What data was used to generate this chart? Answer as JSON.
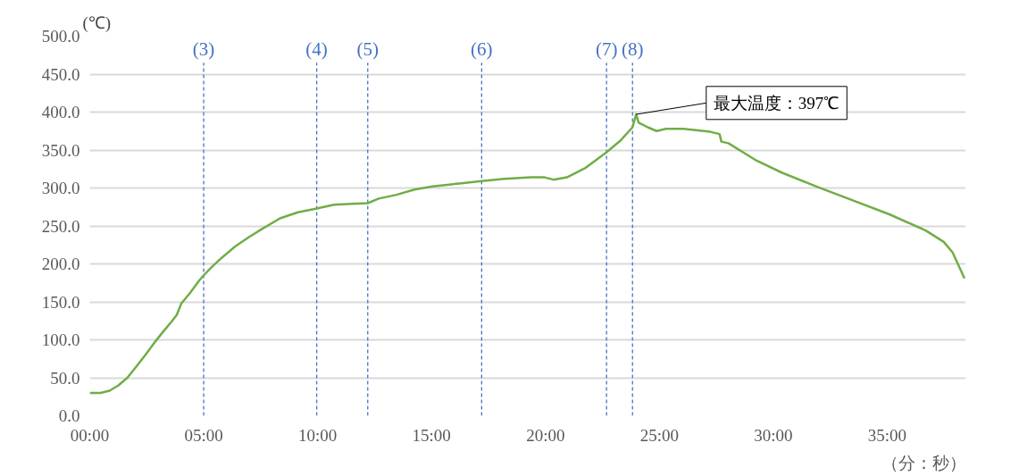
{
  "chart_data": {
    "type": "line",
    "ylabel": "(℃)",
    "xlabel": "（分：秒）",
    "x": [
      0,
      0.47,
      0.87,
      1.26,
      1.65,
      2.05,
      2.44,
      2.83,
      3.23,
      3.62,
      3.82,
      4.02,
      4.41,
      4.8,
      5.0,
      5.39,
      5.79,
      6.38,
      6.97,
      7.56,
      8.35,
      9.13,
      9.96,
      10.71,
      11.5,
      12.2,
      12.68,
      13.46,
      14.25,
      15.04,
      16.22,
      17.2,
      18.19,
      19.37,
      19.96,
      20.35,
      20.94,
      21.73,
      22.68,
      23.31,
      23.82,
      23.98,
      24.09,
      24.49,
      24.88,
      25.28,
      26.06,
      27.24,
      27.64,
      27.72,
      28.03,
      29.21,
      30.39,
      31.97,
      33.54,
      35.12,
      36.69,
      37.48,
      37.87,
      38.39
    ],
    "series": [
      {
        "color": "#70ad47",
        "values": [
          30,
          30,
          33,
          40,
          50,
          65,
          80,
          96,
          111,
          125,
          133,
          148,
          162,
          178,
          185,
          197,
          208,
          223,
          235,
          246,
          260,
          268,
          273,
          278,
          279,
          280,
          286,
          291,
          298,
          302,
          306,
          309,
          312,
          314,
          314,
          311,
          314,
          326,
          347,
          363,
          380,
          397,
          386,
          380,
          375,
          378,
          378,
          374,
          371,
          361,
          359,
          337,
          320,
          301,
          283,
          265,
          244,
          229,
          215,
          181
        ]
      }
    ],
    "xlim": [
      0,
      38.45
    ],
    "xticks": [
      {
        "value": 0,
        "label": "00:00"
      },
      {
        "value": 5,
        "label": "05:00"
      },
      {
        "value": 10,
        "label": "10:00"
      },
      {
        "value": 15,
        "label": "15:00"
      },
      {
        "value": 20,
        "label": "20:00"
      },
      {
        "value": 25,
        "label": "25:00"
      },
      {
        "value": 30,
        "label": "30:00"
      },
      {
        "value": 35,
        "label": "35:00"
      }
    ],
    "ylim": [
      0,
      500
    ],
    "yticks": [
      {
        "value": 0,
        "label": "0.0"
      },
      {
        "value": 50,
        "label": "50.0"
      },
      {
        "value": 100,
        "label": "100.0"
      },
      {
        "value": 150,
        "label": "150.0"
      },
      {
        "value": 200,
        "label": "200.0"
      },
      {
        "value": 250,
        "label": "250.0"
      },
      {
        "value": 300,
        "label": "300.0"
      },
      {
        "value": 350,
        "label": "350.0"
      },
      {
        "value": 400,
        "label": "400.0"
      },
      {
        "value": 450,
        "label": "450.0"
      },
      {
        "value": 500,
        "label": "500.0"
      }
    ],
    "grid": "y",
    "line_style": "solid",
    "ref_lines": [
      {
        "axis": "x",
        "value": 5.0,
        "color": "#4472c4",
        "line_style": "dashed"
      },
      {
        "axis": "x",
        "value": 9.96,
        "color": "#4472c4",
        "line_style": "dashed"
      },
      {
        "axis": "x",
        "value": 12.2,
        "color": "#4472c4",
        "line_style": "dashed"
      },
      {
        "axis": "x",
        "value": 17.2,
        "color": "#4472c4",
        "line_style": "dashed"
      },
      {
        "axis": "x",
        "value": 22.68,
        "color": "#4472c4",
        "line_style": "dashed"
      },
      {
        "axis": "x",
        "value": 23.82,
        "color": "#4472c4",
        "line_style": "dashed"
      }
    ],
    "annotations": [
      {
        "text": "最大温度：397℃",
        "x": 23.98,
        "y": 397
      },
      "(3)",
      "(4)",
      "(5)",
      "(6)",
      "(7)",
      "(8)"
    ]
  }
}
